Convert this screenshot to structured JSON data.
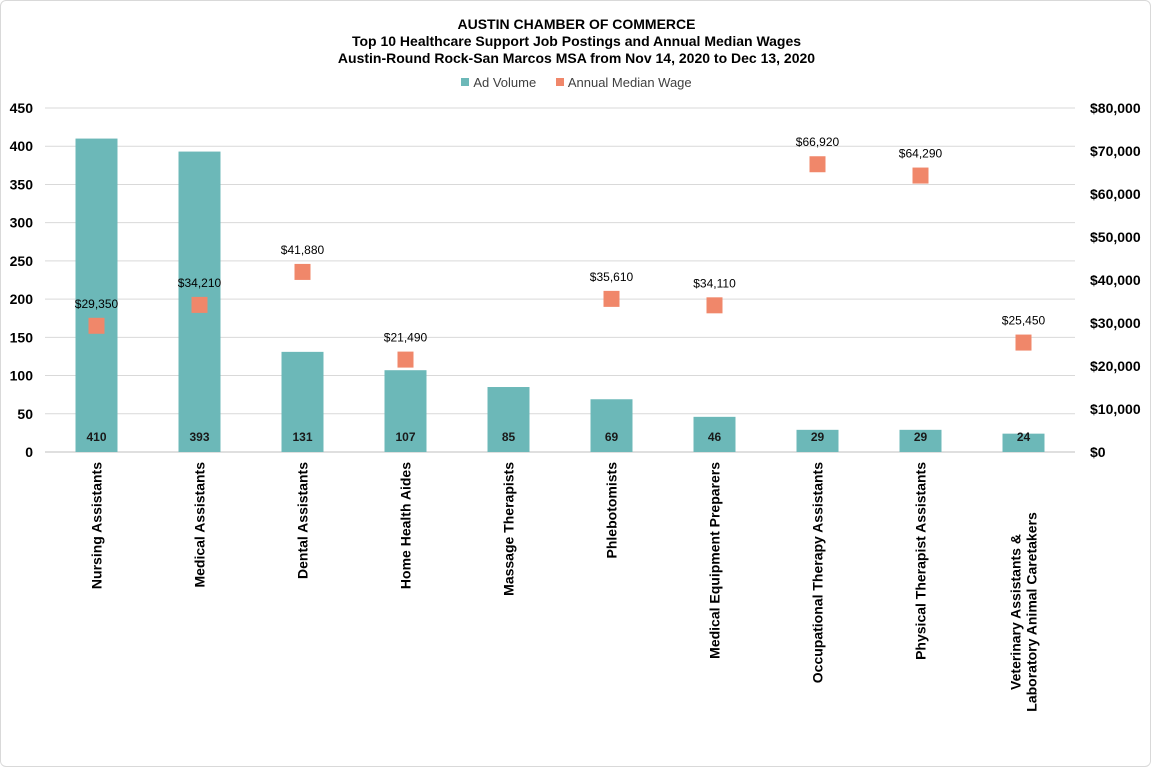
{
  "chart_data": {
    "type": "bar",
    "title": "AUSTIN CHAMBER OF COMMERCE",
    "subtitle_lines": [
      "Top 10 Healthcare Support Job Postings and Annual  Median Wages",
      "Austin-Round Rock-San Marcos MSA from Nov 14, 2020 to Dec 13, 2020"
    ],
    "categories": [
      "Nursing Assistants",
      "Medical Assistants",
      "Dental Assistants",
      "Home Health Aides",
      "Massage Therapists",
      "Phlebotomists",
      "Medical Equipment Preparers",
      "Occupational Therapy Assistants",
      "Physical Therapist Assistants",
      "Veterinary Assistants & Laboratory Animal Caretakers"
    ],
    "series": [
      {
        "name": "Ad Volume",
        "type": "bar",
        "axis": "left",
        "color": "#6cb8b8",
        "values": [
          410,
          393,
          131,
          107,
          85,
          69,
          46,
          29,
          29,
          24
        ],
        "labels": [
          "410",
          "393",
          "131",
          "107",
          "85",
          "69",
          "46",
          "29",
          "29",
          "24"
        ]
      },
      {
        "name": "Annual Median Wage",
        "type": "scatter",
        "axis": "right",
        "color": "#f0876a",
        "values": [
          29350,
          34210,
          41880,
          21490,
          null,
          35610,
          34110,
          66920,
          64290,
          25450
        ],
        "labels": [
          "$29,350",
          "$34,210",
          "$41,880",
          "$21,490",
          "",
          "$35,610",
          "$34,110",
          "$66,920",
          "$64,290",
          "$25,450"
        ]
      }
    ],
    "ylim_left": [
      0,
      450
    ],
    "yticks_left": [
      "0",
      "50",
      "100",
      "150",
      "200",
      "250",
      "300",
      "350",
      "400",
      "450"
    ],
    "ylim_right": [
      0,
      80000
    ],
    "yticks_right": [
      "$0",
      "$10,000",
      "$20,000",
      "$30,000",
      "$40,000",
      "$50,000",
      "$60,000",
      "$70,000",
      "$80,000"
    ],
    "grid": true,
    "legend_position": "top"
  }
}
